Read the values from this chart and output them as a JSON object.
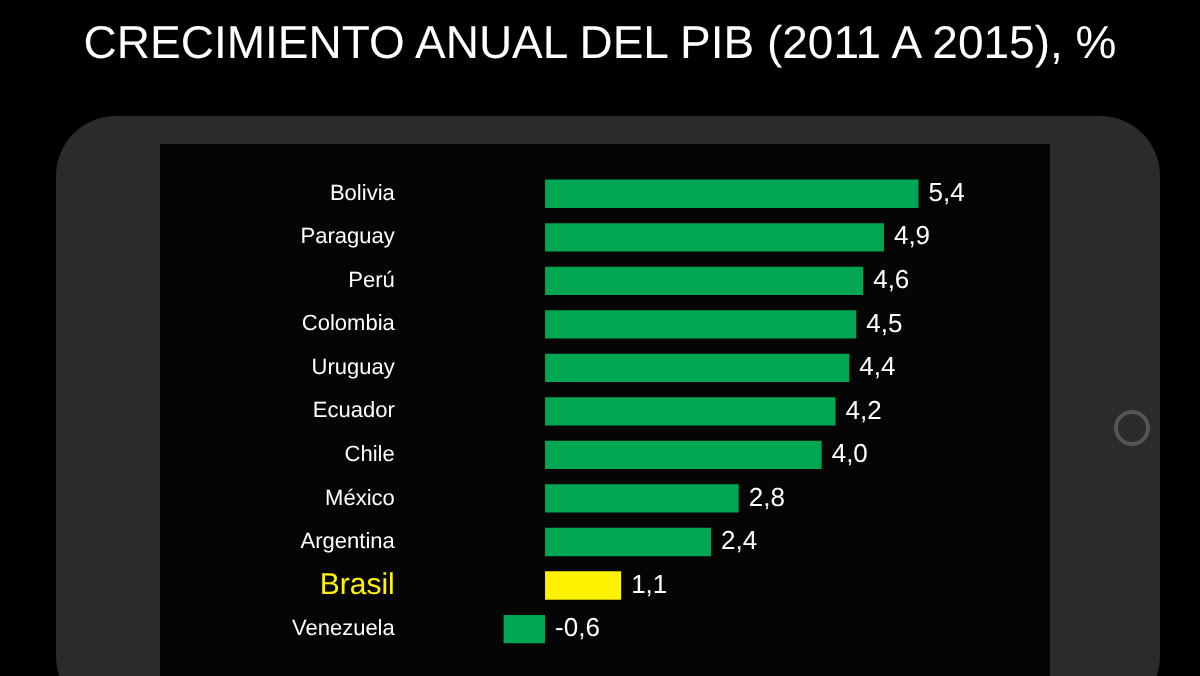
{
  "chart_data": {
    "type": "bar",
    "orientation": "horizontal",
    "title": "CRECIMIENTO ANUAL DEL PIB (2011 A 2015), %",
    "categories": [
      "Bolivia",
      "Paraguay",
      "Perú",
      "Colombia",
      "Uruguay",
      "Ecuador",
      "Chile",
      "México",
      "Argentina",
      "Brasil",
      "Venezuela"
    ],
    "values": [
      5.4,
      4.9,
      4.6,
      4.5,
      4.4,
      4.2,
      4.0,
      2.8,
      2.4,
      1.1,
      -0.6
    ],
    "colors": [
      "#00a651",
      "#00a651",
      "#00a651",
      "#00a651",
      "#00a651",
      "#00a651",
      "#00a651",
      "#00a651",
      "#00a651",
      "#fff200",
      "#00a651"
    ],
    "value_labels": [
      "5,4",
      "4,9",
      "4,6",
      "4,5",
      "4,4",
      "4,2",
      "4,0",
      "2,8",
      "2,4",
      "1,1",
      "-0,6"
    ],
    "legend": false
  }
}
